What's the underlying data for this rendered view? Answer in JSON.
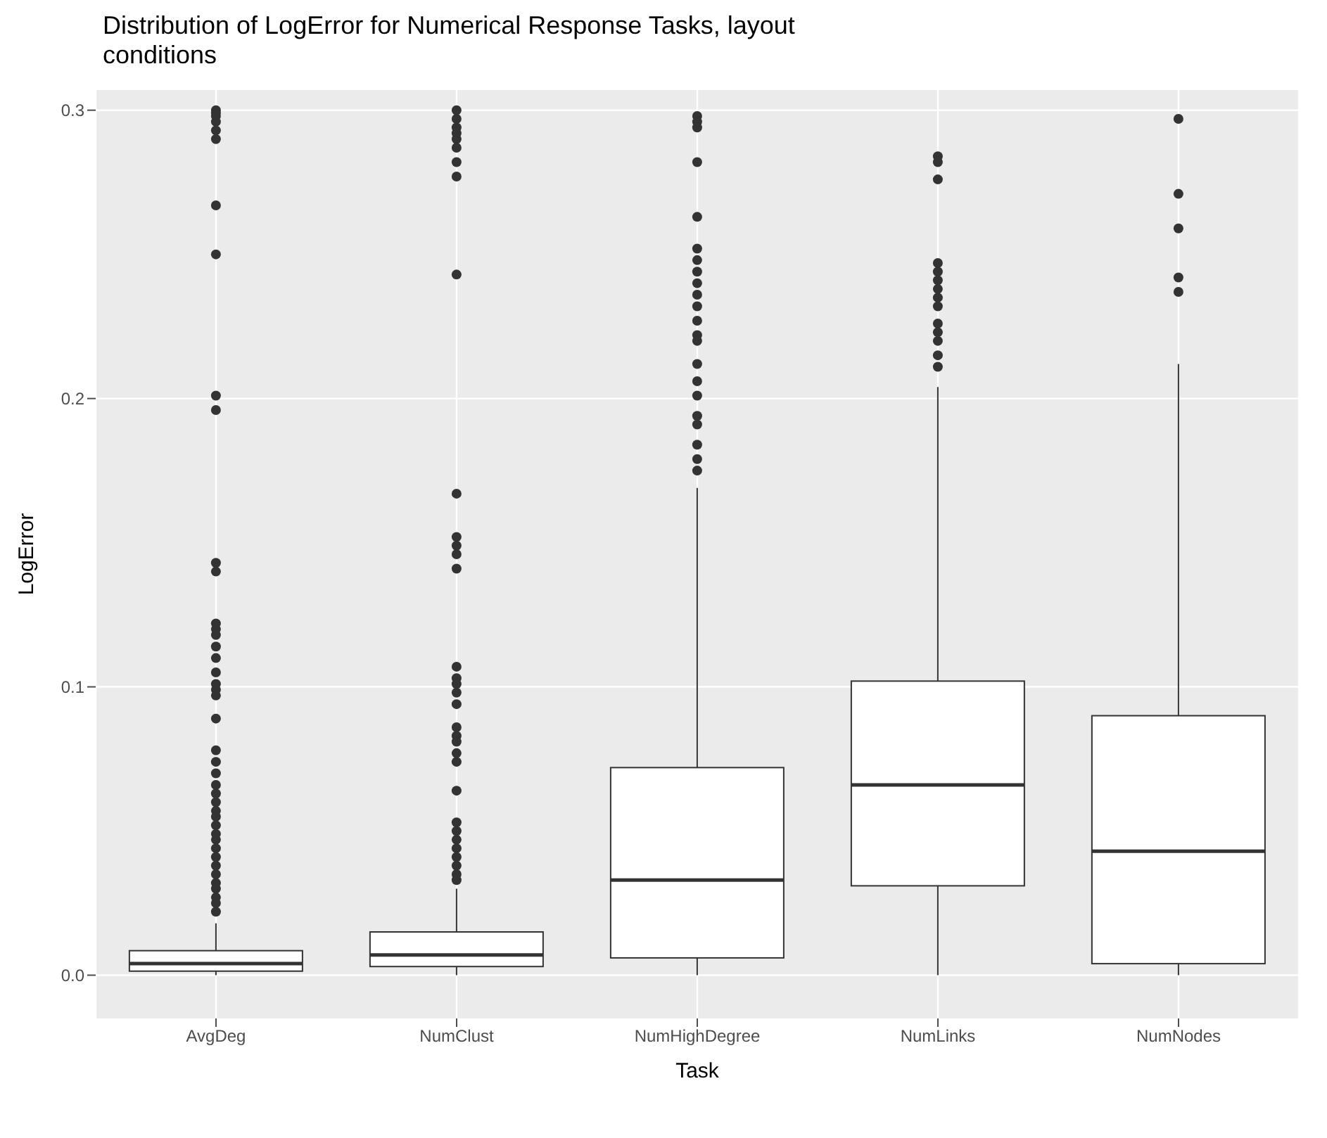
{
  "chart_data": {
    "type": "box",
    "title": "Distribution of LogError for Numerical Response Tasks, layout conditions",
    "xlabel": "Task",
    "ylabel": "LogError",
    "categories": [
      "AvgDeg",
      "NumClust",
      "NumHighDegree",
      "NumLinks",
      "NumNodes"
    ],
    "boxes": [
      {
        "low": 0,
        "q1": 0.0014,
        "median": 0.004,
        "q3": 0.0085,
        "high": 0.018,
        "outliers": [
          0.3,
          0.299,
          0.298,
          0.296,
          0.293,
          0.29,
          0.267,
          0.25,
          0.201,
          0.196,
          0.143,
          0.14,
          0.122,
          0.12,
          0.118,
          0.114,
          0.11,
          0.105,
          0.101,
          0.099,
          0.097,
          0.089,
          0.078,
          0.074,
          0.07,
          0.066,
          0.063,
          0.06,
          0.057,
          0.055,
          0.052,
          0.049,
          0.047,
          0.044,
          0.041,
          0.038,
          0.035,
          0.032,
          0.03,
          0.027,
          0.025,
          0.022
        ]
      },
      {
        "low": 0,
        "q1": 0.003,
        "median": 0.007,
        "q3": 0.015,
        "high": 0.03,
        "outliers": [
          0.3,
          0.297,
          0.294,
          0.292,
          0.29,
          0.287,
          0.282,
          0.277,
          0.243,
          0.167,
          0.152,
          0.149,
          0.146,
          0.141,
          0.107,
          0.103,
          0.101,
          0.098,
          0.094,
          0.086,
          0.083,
          0.081,
          0.077,
          0.074,
          0.064,
          0.053,
          0.05,
          0.047,
          0.044,
          0.041,
          0.038,
          0.035,
          0.033
        ]
      },
      {
        "low": 0,
        "q1": 0.006,
        "median": 0.033,
        "q3": 0.072,
        "high": 0.169,
        "outliers": [
          0.298,
          0.296,
          0.294,
          0.282,
          0.263,
          0.252,
          0.248,
          0.244,
          0.24,
          0.236,
          0.232,
          0.227,
          0.222,
          0.22,
          0.212,
          0.206,
          0.201,
          0.194,
          0.191,
          0.184,
          0.179,
          0.175
        ]
      },
      {
        "low": 0,
        "q1": 0.031,
        "median": 0.066,
        "q3": 0.102,
        "high": 0.204,
        "outliers": [
          0.284,
          0.282,
          0.276,
          0.247,
          0.244,
          0.241,
          0.238,
          0.235,
          0.232,
          0.226,
          0.223,
          0.22,
          0.215,
          0.211
        ]
      },
      {
        "low": 0,
        "q1": 0.004,
        "median": 0.043,
        "q3": 0.09,
        "high": 0.212,
        "outliers": [
          0.297,
          0.271,
          0.259,
          0.242,
          0.237
        ]
      }
    ],
    "ylim": [
      -0.015,
      0.307
    ],
    "yticks": [
      {
        "value": 0,
        "label": "0.0"
      },
      0.1,
      0.2,
      0.3
    ],
    "grid": true
  }
}
